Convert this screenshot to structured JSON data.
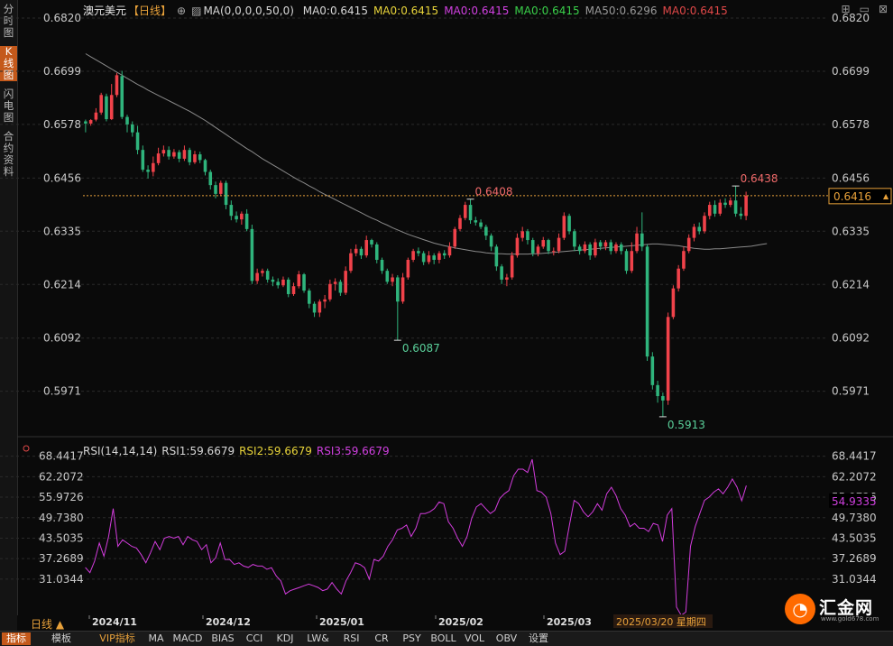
{
  "side_tabs": [
    {
      "label": "分时图",
      "active": false
    },
    {
      "label": "K线图",
      "active": true
    },
    {
      "label": "闪电图",
      "active": false
    },
    {
      "label": "合约资料",
      "active": false
    }
  ],
  "header": {
    "symbol": "澳元美元",
    "period": "【日线】",
    "ma_params": "MA(0,0,0,0,50,0)",
    "ma_values": [
      {
        "label": "MA0:0.6415",
        "color": "#d8d8d8"
      },
      {
        "label": "MA0:0.6415",
        "color": "#e8d43a"
      },
      {
        "label": "MA0:0.6415",
        "color": "#d040e0"
      },
      {
        "label": "MA0:0.6415",
        "color": "#3ad04a"
      },
      {
        "label": "MA50:0.6296",
        "color": "#9a9a9a"
      },
      {
        "label": "MA0:0.6415",
        "color": "#e04848"
      }
    ]
  },
  "rsi_header": {
    "params": "RSI(14,14,14)",
    "rsi1": "RSI1:59.6679",
    "rsi2": "RSI2:59.6679",
    "rsi3": "RSI3:59.6679"
  },
  "current_price_label": "0.6416",
  "current_rsi_label": "54.9335",
  "date_hover_label": "2025/03/20 星期四",
  "period_selector": "日线 ▲",
  "toolbar": [
    {
      "label": "指标",
      "active": true
    },
    {
      "label": "模板",
      "active": false
    },
    {
      "label": "VIP指标",
      "active": false,
      "vip": true
    },
    {
      "label": "MA",
      "active": false
    },
    {
      "label": "MACD",
      "active": false
    },
    {
      "label": "BIAS",
      "active": false
    },
    {
      "label": "CCI",
      "active": false
    },
    {
      "label": "KDJ",
      "active": false
    },
    {
      "label": "LW&",
      "active": false
    },
    {
      "label": "RSI",
      "active": false
    },
    {
      "label": "CR",
      "active": false
    },
    {
      "label": "PSY",
      "active": false
    },
    {
      "label": "BOLL",
      "active": false
    },
    {
      "label": "VOL",
      "active": false
    },
    {
      "label": "OBV",
      "active": false
    },
    {
      "label": "设置",
      "active": false
    }
  ],
  "logo": {
    "name": "汇金网",
    "url": "www.gold678.com",
    "icon": "logo-icon"
  },
  "colors": {
    "up": "#f0424a",
    "down": "#2fb47c",
    "ma50": "#8a8a8a",
    "rsi": "#d23cdc",
    "accent": "#c4591b",
    "price_line": "#e8a13a"
  },
  "chart_data": [
    {
      "type": "candlestick",
      "symbol": "澳元美元",
      "yticks": [
        "0.6820",
        "0.6699",
        "0.6578",
        "0.6456",
        "0.6335",
        "0.6214",
        "0.6092",
        "0.5971"
      ],
      "ylim": [
        0.588,
        0.682
      ],
      "xticks": [
        "2024/11",
        "2024/12",
        "2025/01",
        "2025/02",
        "2025/03"
      ],
      "annotations": [
        {
          "text": "0.6438",
          "value": 0.6438,
          "kind": "high"
        },
        {
          "text": "0.6408",
          "value": 0.6408,
          "kind": "high"
        },
        {
          "text": "0.6087",
          "value": 0.6087,
          "kind": "low"
        },
        {
          "text": "0.5913",
          "value": 0.5913,
          "kind": "low"
        }
      ],
      "current_price": 0.6416,
      "candles": [
        [
          0.6585,
          0.658,
          0.656,
          0.6589
        ],
        [
          0.658,
          0.6588,
          0.6575,
          0.659
        ],
        [
          0.6589,
          0.6605,
          0.6585,
          0.6615
        ],
        [
          0.6605,
          0.6645,
          0.66,
          0.665
        ],
        [
          0.6642,
          0.659,
          0.6585,
          0.6648
        ],
        [
          0.659,
          0.6645,
          0.6588,
          0.667
        ],
        [
          0.6645,
          0.669,
          0.664,
          0.6695
        ],
        [
          0.6688,
          0.6595,
          0.659,
          0.67
        ],
        [
          0.6595,
          0.6578,
          0.656,
          0.66
        ],
        [
          0.6578,
          0.656,
          0.655,
          0.6585
        ],
        [
          0.656,
          0.652,
          0.651,
          0.6575
        ],
        [
          0.652,
          0.6475,
          0.647,
          0.653
        ],
        [
          0.6475,
          0.647,
          0.6455,
          0.6485
        ],
        [
          0.647,
          0.649,
          0.646,
          0.6505
        ],
        [
          0.649,
          0.6512,
          0.6485,
          0.6525
        ],
        [
          0.6512,
          0.652,
          0.6505,
          0.653
        ],
        [
          0.652,
          0.6505,
          0.6498,
          0.6528
        ],
        [
          0.6505,
          0.6515,
          0.65,
          0.6522
        ],
        [
          0.6515,
          0.65,
          0.6492,
          0.652
        ],
        [
          0.65,
          0.652,
          0.6495,
          0.653
        ],
        [
          0.652,
          0.6492,
          0.6485,
          0.6525
        ],
        [
          0.6492,
          0.651,
          0.6488,
          0.6518
        ],
        [
          0.651,
          0.6497,
          0.649,
          0.6516
        ],
        [
          0.6497,
          0.647,
          0.6462,
          0.65
        ],
        [
          0.647,
          0.644,
          0.643,
          0.6475
        ],
        [
          0.644,
          0.642,
          0.641,
          0.6448
        ],
        [
          0.642,
          0.6445,
          0.6415,
          0.645
        ],
        [
          0.6445,
          0.6395,
          0.6385,
          0.645
        ],
        [
          0.6395,
          0.637,
          0.636,
          0.6405
        ],
        [
          0.637,
          0.6362,
          0.6355,
          0.638
        ],
        [
          0.6362,
          0.6375,
          0.635,
          0.638
        ],
        [
          0.6375,
          0.634,
          0.6335,
          0.6385
        ],
        [
          0.634,
          0.6222,
          0.6215,
          0.635
        ],
        [
          0.6222,
          0.624,
          0.6215,
          0.625
        ],
        [
          0.624,
          0.6245,
          0.6232,
          0.625
        ],
        [
          0.6245,
          0.6225,
          0.6218,
          0.625
        ],
        [
          0.6225,
          0.622,
          0.621,
          0.6232
        ],
        [
          0.622,
          0.6212,
          0.6205,
          0.6228
        ],
        [
          0.6212,
          0.6225,
          0.6208,
          0.6232
        ],
        [
          0.6225,
          0.6192,
          0.6185,
          0.623
        ],
        [
          0.6192,
          0.621,
          0.6188,
          0.6218
        ],
        [
          0.621,
          0.6237,
          0.6205,
          0.6245
        ],
        [
          0.6237,
          0.62,
          0.6195,
          0.624
        ],
        [
          0.62,
          0.617,
          0.616,
          0.6205
        ],
        [
          0.617,
          0.615,
          0.614,
          0.6175
        ],
        [
          0.615,
          0.6175,
          0.614,
          0.618
        ],
        [
          0.6175,
          0.618,
          0.616,
          0.619
        ],
        [
          0.618,
          0.6215,
          0.6175,
          0.6225
        ],
        [
          0.6215,
          0.622,
          0.62,
          0.6228
        ],
        [
          0.622,
          0.6195,
          0.6188,
          0.6225
        ],
        [
          0.6195,
          0.6245,
          0.619,
          0.6255
        ],
        [
          0.6245,
          0.6285,
          0.624,
          0.6295
        ],
        [
          0.6285,
          0.6295,
          0.6278,
          0.6305
        ],
        [
          0.6295,
          0.628,
          0.6272,
          0.63
        ],
        [
          0.628,
          0.6315,
          0.6275,
          0.6325
        ],
        [
          0.6315,
          0.6305,
          0.6298,
          0.6318
        ],
        [
          0.6305,
          0.627,
          0.6262,
          0.631
        ],
        [
          0.627,
          0.6245,
          0.6238,
          0.6275
        ],
        [
          0.6245,
          0.622,
          0.6215,
          0.625
        ],
        [
          0.622,
          0.623,
          0.621,
          0.6238
        ],
        [
          0.623,
          0.6175,
          0.6087,
          0.6235
        ],
        [
          0.6175,
          0.623,
          0.617,
          0.624
        ],
        [
          0.623,
          0.627,
          0.6225,
          0.6275
        ],
        [
          0.627,
          0.629,
          0.6265,
          0.6295
        ],
        [
          0.629,
          0.6285,
          0.6278,
          0.6298
        ],
        [
          0.6285,
          0.6265,
          0.6258,
          0.629
        ],
        [
          0.6265,
          0.628,
          0.626,
          0.629
        ],
        [
          0.628,
          0.627,
          0.626,
          0.6285
        ],
        [
          0.627,
          0.6285,
          0.6262,
          0.629
        ],
        [
          0.6285,
          0.628,
          0.6272,
          0.6292
        ],
        [
          0.628,
          0.63,
          0.6275,
          0.631
        ],
        [
          0.63,
          0.634,
          0.6295,
          0.6345
        ],
        [
          0.634,
          0.6365,
          0.6335,
          0.6372
        ],
        [
          0.6365,
          0.6395,
          0.636,
          0.6402
        ],
        [
          0.6395,
          0.636,
          0.6352,
          0.6408
        ],
        [
          0.636,
          0.6355,
          0.6348,
          0.6368
        ],
        [
          0.6355,
          0.6345,
          0.634,
          0.6362
        ],
        [
          0.6345,
          0.6325,
          0.6315,
          0.635
        ],
        [
          0.6325,
          0.63,
          0.629,
          0.633
        ],
        [
          0.63,
          0.6255,
          0.6245,
          0.6305
        ],
        [
          0.6255,
          0.6225,
          0.6215,
          0.626
        ],
        [
          0.6225,
          0.623,
          0.621,
          0.6238
        ],
        [
          0.623,
          0.628,
          0.6225,
          0.6288
        ],
        [
          0.628,
          0.632,
          0.6275,
          0.633
        ],
        [
          0.632,
          0.6335,
          0.6312,
          0.6345
        ],
        [
          0.6335,
          0.6315,
          0.6305,
          0.634
        ],
        [
          0.6315,
          0.6285,
          0.6278,
          0.632
        ],
        [
          0.6285,
          0.63,
          0.6278,
          0.6305
        ],
        [
          0.63,
          0.6315,
          0.6295,
          0.6322
        ],
        [
          0.6315,
          0.629,
          0.6283,
          0.6318
        ],
        [
          0.629,
          0.629,
          0.628,
          0.6298
        ],
        [
          0.629,
          0.632,
          0.6285,
          0.633
        ],
        [
          0.632,
          0.637,
          0.6315,
          0.6378
        ],
        [
          0.637,
          0.6335,
          0.6328,
          0.6375
        ],
        [
          0.6335,
          0.63,
          0.629,
          0.634
        ],
        [
          0.63,
          0.629,
          0.6282,
          0.6305
        ],
        [
          0.629,
          0.6305,
          0.6285,
          0.6312
        ],
        [
          0.6305,
          0.628,
          0.627,
          0.631
        ],
        [
          0.628,
          0.631,
          0.6275,
          0.6318
        ],
        [
          0.631,
          0.63,
          0.6292,
          0.6315
        ],
        [
          0.63,
          0.631,
          0.6292,
          0.6315
        ],
        [
          0.631,
          0.629,
          0.6282,
          0.6316
        ],
        [
          0.629,
          0.6305,
          0.6285,
          0.631
        ],
        [
          0.6305,
          0.629,
          0.6282,
          0.631
        ],
        [
          0.629,
          0.6245,
          0.6238,
          0.6295
        ],
        [
          0.6245,
          0.629,
          0.624,
          0.631
        ],
        [
          0.629,
          0.633,
          0.6285,
          0.6345
        ],
        [
          0.633,
          0.63,
          0.629,
          0.6378
        ],
        [
          0.63,
          0.605,
          0.604,
          0.6305
        ],
        [
          0.605,
          0.5985,
          0.5975,
          0.606
        ],
        [
          0.5985,
          0.596,
          0.5945,
          0.5995
        ],
        [
          0.596,
          0.595,
          0.5913,
          0.5968
        ],
        [
          0.595,
          0.614,
          0.594,
          0.615
        ],
        [
          0.614,
          0.6205,
          0.6135,
          0.6212
        ],
        [
          0.6205,
          0.625,
          0.6198,
          0.6258
        ],
        [
          0.625,
          0.629,
          0.6245,
          0.63
        ],
        [
          0.629,
          0.632,
          0.6285,
          0.6328
        ],
        [
          0.632,
          0.6345,
          0.6312,
          0.6352
        ],
        [
          0.6345,
          0.6335,
          0.6328,
          0.6355
        ],
        [
          0.6335,
          0.637,
          0.633,
          0.6378
        ],
        [
          0.637,
          0.6395,
          0.6362,
          0.6402
        ],
        [
          0.6395,
          0.6375,
          0.6368,
          0.6405
        ],
        [
          0.6375,
          0.64,
          0.637,
          0.6408
        ],
        [
          0.64,
          0.6395,
          0.6388,
          0.641
        ],
        [
          0.6395,
          0.6405,
          0.639,
          0.6412
        ],
        [
          0.6405,
          0.6375,
          0.6368,
          0.6438
        ],
        [
          0.6375,
          0.637,
          0.6362,
          0.639
        ],
        [
          0.637,
          0.6416,
          0.636,
          0.6425
        ]
      ],
      "ma50": [
        0.6739,
        0.6732,
        0.6725,
        0.6718,
        0.6711,
        0.6704,
        0.6697,
        0.669,
        0.6683,
        0.6676,
        0.6669,
        0.6663,
        0.6656,
        0.665,
        0.6644,
        0.6638,
        0.6632,
        0.6626,
        0.662,
        0.6614,
        0.6608,
        0.6601,
        0.6594,
        0.6587,
        0.6579,
        0.6571,
        0.6563,
        0.6555,
        0.6547,
        0.6539,
        0.6531,
        0.6523,
        0.6516,
        0.6508,
        0.65,
        0.6493,
        0.6486,
        0.6479,
        0.6472,
        0.6465,
        0.6458,
        0.6451,
        0.6445,
        0.6438,
        0.6432,
        0.6425,
        0.6419,
        0.6413,
        0.6407,
        0.6401,
        0.6395,
        0.6389,
        0.6383,
        0.6377,
        0.6371,
        0.6365,
        0.636,
        0.6354,
        0.6349,
        0.6343,
        0.6338,
        0.6333,
        0.6328,
        0.6324,
        0.632,
        0.6316,
        0.6312,
        0.6308,
        0.6305,
        0.6302,
        0.63,
        0.6297,
        0.6295,
        0.6293,
        0.6291,
        0.6289,
        0.6288,
        0.6286,
        0.6285,
        0.6284,
        0.6284,
        0.6283,
        0.6283,
        0.6283,
        0.6283,
        0.6283,
        0.6284,
        0.6284,
        0.6285,
        0.6286,
        0.6287,
        0.6288,
        0.6289,
        0.629,
        0.6291,
        0.6292,
        0.6293,
        0.6294,
        0.6295,
        0.6296,
        0.6297,
        0.6298,
        0.6299,
        0.63,
        0.6301,
        0.6302,
        0.6303,
        0.6304,
        0.6305,
        0.6306,
        0.6306,
        0.6305,
        0.6304,
        0.6303,
        0.6302,
        0.63,
        0.6298,
        0.6296,
        0.6295,
        0.6294,
        0.6294,
        0.6295,
        0.6295,
        0.6296,
        0.6297,
        0.6298,
        0.6299,
        0.63,
        0.6301,
        0.6303,
        0.6305,
        0.6307
      ]
    },
    {
      "type": "line",
      "series": [
        {
          "name": "RSI1",
          "values": [
            34.6,
            33.0,
            36.5,
            42.0,
            38.0,
            44.0,
            52.5,
            41.0,
            43.0,
            42.0,
            41.0,
            40.5,
            38.5,
            36.0,
            39.0,
            42.5,
            40.0,
            43.5,
            44.0,
            43.5,
            44.0,
            41.5,
            44.0,
            43.0,
            42.5,
            40.0,
            41.5,
            36.0,
            37.5,
            42.0,
            37.0,
            37.0,
            35.5,
            36.0,
            35.0,
            34.6,
            35.5,
            35.0,
            35.0,
            34.0,
            34.5,
            32.0,
            30.5,
            26.5,
            27.5,
            28.0,
            28.5,
            29.0,
            29.5,
            29.0,
            28.5,
            27.5,
            28.0,
            30.0,
            28.0,
            26.5,
            30.5,
            33.0,
            36.0,
            35.5,
            34.5,
            31.0,
            37.0,
            36.5,
            38.0,
            41.0,
            43.0,
            46.0,
            46.5,
            47.5,
            44.0,
            46.5,
            51.0,
            51.0,
            51.5,
            52.5,
            54.5,
            54.0,
            48.5,
            46.5,
            43.5,
            41.0,
            44.0,
            49.5,
            53.0,
            54.0,
            52.5,
            51.0,
            52.0,
            55.5,
            57.0,
            58.0,
            62.5,
            64.5,
            64.5,
            63.5,
            67.5,
            58.0,
            57.5,
            56.0,
            51.0,
            42.0,
            38.5,
            39.5,
            47.5,
            55.0,
            54.0,
            51.5,
            50.0,
            51.5,
            54.0,
            52.0,
            57.0,
            59.0,
            56.5,
            52.5,
            50.5,
            47.0,
            48.0,
            46.5,
            46.5,
            45.5,
            48.0,
            47.5,
            42.5,
            50.5,
            52.5,
            22.5,
            20.0,
            21.0,
            41.0,
            47.0,
            51.0,
            55.0,
            56.0,
            57.5,
            58.5,
            57.0,
            59.0,
            61.5,
            59.0,
            54.9,
            59.5
          ]
        }
      ],
      "yticks": [
        "68.4417",
        "62.2072",
        "55.9726",
        "49.7380",
        "43.5035",
        "37.2689",
        "31.0344"
      ],
      "ylim": [
        20,
        70
      ]
    }
  ]
}
